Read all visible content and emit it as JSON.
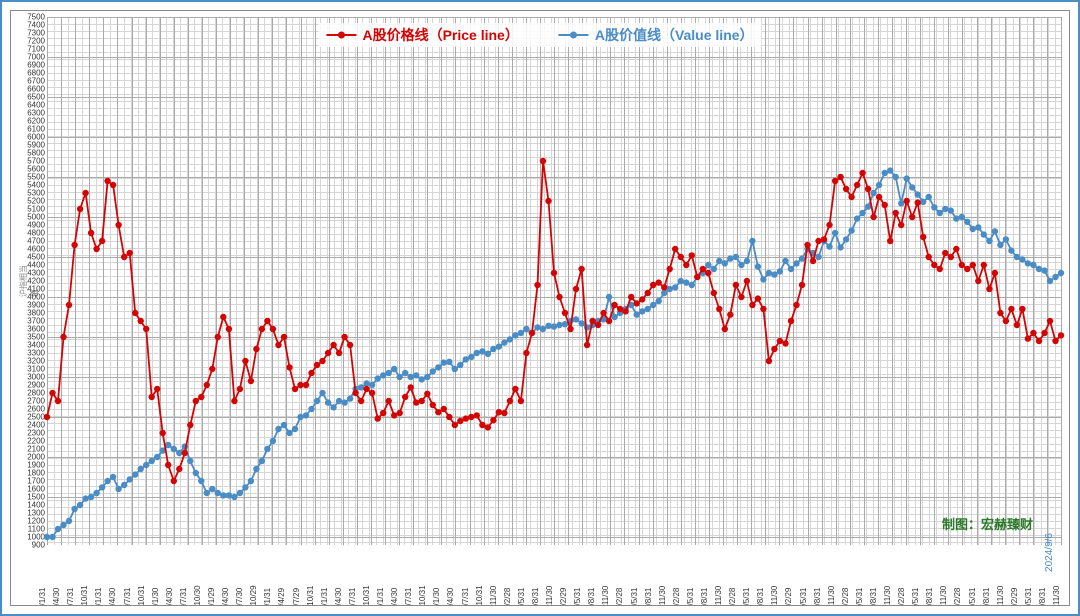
{
  "chart": {
    "type": "line",
    "background_color": "#ffffff",
    "border_color": "#4a8cc5",
    "grid_minor_color": "#d6d6d6",
    "grid_major_color": "#aaaaaa",
    "y_axis": {
      "min": 900,
      "max": 7500,
      "tick_step": 100,
      "label": "沪指相当值"
    },
    "x_axis": {
      "labels": [
        "07/1/31",
        "07/4/30",
        "07/7/31",
        "07/10/31",
        "08/1/31",
        "08/4/30",
        "08/7/31",
        "08/10/31",
        "09/1/30",
        "09/4/30",
        "09/7/31",
        "09/10/30",
        "10/1/29",
        "10/4/30",
        "10/7/30",
        "10/10/29",
        "11/1/31",
        "11/4/29",
        "11/7/29",
        "11/10/31",
        "12/1/31",
        "12/4/30",
        "12/7/31",
        "12/10/31",
        "13/1/31",
        "13/4/30",
        "13/7/31",
        "13/10/31",
        "14/1/30",
        "14/4/30",
        "14/7/31",
        "14/10/31",
        "14/11/30",
        "15/2/28",
        "15/5/31",
        "15/8/31",
        "15/11/30",
        "16/2/29",
        "16/5/31",
        "16/8/31",
        "16/11/30",
        "17/2/28",
        "17/5/31",
        "17/8/31",
        "17/11/30",
        "18/2/28",
        "18/5/31",
        "18/8/31",
        "18/11/30",
        "19/2/28",
        "19/5/31",
        "19/8/31",
        "19/11/30",
        "20/2/29",
        "20/5/31",
        "20/8/31",
        "20/11/30",
        "21/2/28",
        "21/5/31",
        "21/8/31",
        "21/11/30",
        "22/2/28",
        "22/5/31",
        "22/8/31",
        "22/11/30",
        "23/2/28",
        "23/5/31",
        "23/8/31",
        "23/11/30",
        "24/2/29",
        "24/5/31",
        "24/8/31",
        "24/11/30"
      ]
    },
    "legend": {
      "items": [
        {
          "label": "A股价格线（Price line）",
          "color": "#d40404"
        },
        {
          "label": "A股价值线（Value line）",
          "color": "#4a8cc5"
        }
      ]
    },
    "series": {
      "price": {
        "label": "A股价格线（Price line）",
        "color": "#d40404",
        "line_width": 1.8,
        "marker": "circle",
        "marker_size": 3.2,
        "values": [
          2500,
          2800,
          2700,
          3500,
          3900,
          4650,
          5100,
          5300,
          4800,
          4600,
          4700,
          5450,
          5400,
          4900,
          4500,
          4550,
          3800,
          3700,
          3600,
          2750,
          2850,
          2300,
          1900,
          1700,
          1850,
          2050,
          2400,
          2700,
          2750,
          2900,
          3100,
          3500,
          3750,
          3600,
          2700,
          2850,
          3200,
          2950,
          3350,
          3600,
          3700,
          3600,
          3400,
          3500,
          3120,
          2850,
          2900,
          2900,
          3050,
          3150,
          3200,
          3300,
          3400,
          3300,
          3500,
          3400,
          2800,
          2700,
          2850,
          2800,
          2480,
          2550,
          2700,
          2520,
          2550,
          2750,
          2870,
          2680,
          2700,
          2790,
          2650,
          2560,
          2600,
          2500,
          2400,
          2450,
          2480,
          2500,
          2520,
          2400,
          2370,
          2460,
          2560,
          2550,
          2700,
          2850,
          2700,
          3300,
          3550,
          4150,
          5700,
          5200,
          4300,
          4000,
          3800,
          3600,
          4100,
          4350,
          3400,
          3700,
          3650,
          3800,
          3700,
          3900,
          3850,
          3820,
          4000,
          3920,
          3970,
          4050,
          4150,
          4180,
          4120,
          4350,
          4600,
          4500,
          4400,
          4520,
          4250,
          4350,
          4300,
          4050,
          3850,
          3600,
          3780,
          4150,
          4000,
          4200,
          3900,
          3980,
          3850,
          3200,
          3350,
          3450,
          3420,
          3700,
          3900,
          4150,
          4650,
          4450,
          4700,
          4720,
          4900,
          5450,
          5500,
          5350,
          5250,
          5400,
          5550,
          5350,
          5000,
          5250,
          5150,
          4700,
          5050,
          4900,
          5200,
          5000,
          5180,
          4750,
          4500,
          4400,
          4350,
          4550,
          4500,
          4600,
          4400,
          4350,
          4400,
          4200,
          4400,
          4100,
          4300,
          3800,
          3700,
          3850,
          3650,
          3850,
          3480,
          3550,
          3450,
          3550,
          3700,
          3450,
          3520
        ]
      },
      "value": {
        "label": "A股价值线（Value line）",
        "color": "#4a8cc5",
        "line_width": 1.8,
        "marker": "circle",
        "marker_size": 3.2,
        "values": [
          1000,
          1000,
          1100,
          1150,
          1200,
          1350,
          1400,
          1480,
          1500,
          1550,
          1620,
          1700,
          1750,
          1600,
          1650,
          1720,
          1780,
          1850,
          1900,
          1950,
          2000,
          2080,
          2150,
          2100,
          2050,
          2130,
          1950,
          1800,
          1700,
          1550,
          1600,
          1550,
          1520,
          1520,
          1500,
          1550,
          1620,
          1700,
          1850,
          1950,
          2100,
          2200,
          2350,
          2400,
          2300,
          2350,
          2500,
          2520,
          2600,
          2700,
          2800,
          2680,
          2620,
          2700,
          2680,
          2730,
          2850,
          2870,
          2920,
          2900,
          2980,
          3020,
          3050,
          3100,
          3000,
          3050,
          3000,
          3020,
          2970,
          3000,
          3070,
          3120,
          3180,
          3190,
          3100,
          3150,
          3220,
          3250,
          3300,
          3320,
          3290,
          3350,
          3380,
          3430,
          3470,
          3520,
          3550,
          3600,
          3550,
          3620,
          3600,
          3640,
          3630,
          3650,
          3660,
          3700,
          3720,
          3670,
          3620,
          3650,
          3700,
          3720,
          4000,
          3750,
          3800,
          3850,
          3900,
          3780,
          3820,
          3850,
          3900,
          3950,
          4050,
          4100,
          4120,
          4200,
          4180,
          4150,
          4250,
          4300,
          4400,
          4350,
          4450,
          4420,
          4480,
          4500,
          4400,
          4450,
          4700,
          4380,
          4220,
          4300,
          4280,
          4320,
          4450,
          4350,
          4420,
          4480,
          4600,
          4550,
          4500,
          4700,
          4630,
          4800,
          4620,
          4720,
          4830,
          4980,
          5050,
          5130,
          5300,
          5400,
          5550,
          5580,
          5500,
          5170,
          5480,
          5370,
          5280,
          5190,
          5250,
          5120,
          5050,
          5100,
          5080,
          4980,
          5000,
          4940,
          4850,
          4870,
          4780,
          4700,
          4820,
          4650,
          4720,
          4580,
          4500,
          4470,
          4420,
          4400,
          4350,
          4330,
          4200,
          4250,
          4300
        ]
      }
    },
    "credit": "制图：宏赫臻财",
    "credit_color": "#2a7a2a",
    "date_stamp": "2024/9/6",
    "date_stamp_color": "#4a8cc5"
  }
}
